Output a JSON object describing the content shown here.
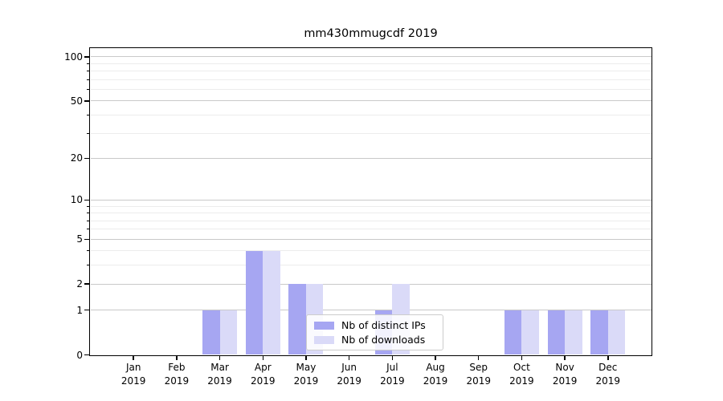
{
  "chart_data": {
    "type": "bar",
    "title": "mm430mmugcdf 2019",
    "categories": [
      "Jan",
      "Feb",
      "Mar",
      "Apr",
      "May",
      "Jun",
      "Jul",
      "Aug",
      "Sep",
      "Oct",
      "Nov",
      "Dec"
    ],
    "category_year": "2019",
    "series": [
      {
        "name": "Nb of distinct IPs",
        "color": "#a6a6f2",
        "values": [
          0,
          0,
          1,
          4,
          2,
          0,
          1,
          0,
          0,
          1,
          1,
          1
        ]
      },
      {
        "name": "Nb of downloads",
        "color": "#dadaf8",
        "values": [
          0,
          0,
          1,
          4,
          2,
          0,
          2,
          0,
          0,
          1,
          1,
          1
        ]
      }
    ],
    "xlabel": "",
    "ylabel": "",
    "yscale": "log1p",
    "ylim": [
      0,
      114
    ],
    "yticks": [
      0,
      1,
      2,
      5,
      10,
      20,
      50,
      100
    ],
    "yticks_minor": [
      3,
      4,
      6,
      7,
      8,
      9,
      30,
      40,
      60,
      70,
      80,
      90
    ],
    "grid": true,
    "legend_position": "inside lower-center"
  },
  "colors": {
    "grid_major": "#c9c9c9",
    "grid_minor": "#ececec",
    "spine": "#000000",
    "background": "#ffffff"
  }
}
